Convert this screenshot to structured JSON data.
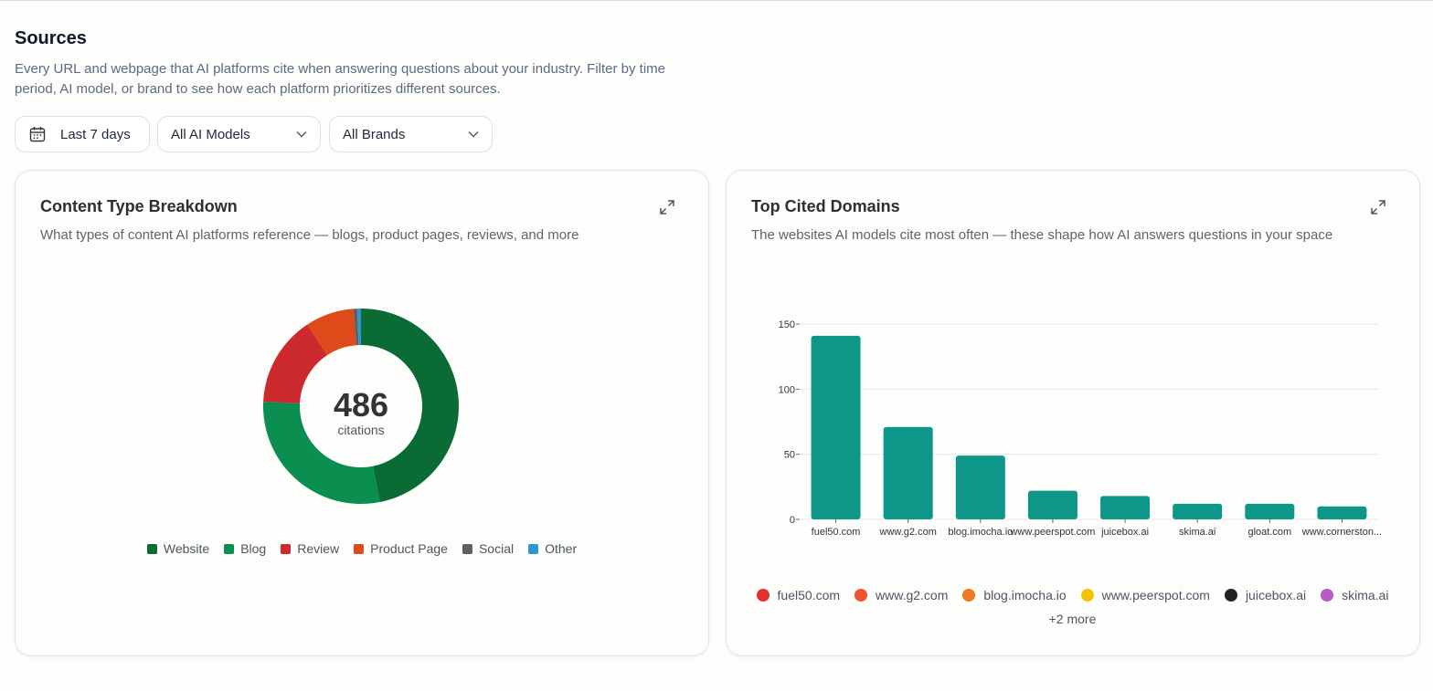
{
  "header": {
    "title": "Sources",
    "description": "Every URL and webpage that AI platforms cite when answering questions about your industry. Filter by time period, AI model, or brand to see how each platform prioritizes different sources."
  },
  "filters": {
    "date": "Last 7 days",
    "model": "All AI Models",
    "brand": "All Brands"
  },
  "chart_data": [
    {
      "type": "donut",
      "title": "Content Type Breakdown",
      "subtitle": "What types of content AI platforms reference — blogs, product pages, reviews, and more",
      "categories": [
        "Website",
        "Blog",
        "Review",
        "Product Page",
        "Social",
        "Other"
      ],
      "values": [
        228,
        140,
        73,
        39,
        3,
        3
      ],
      "colors": [
        "#0b6b35",
        "#0a8f50",
        "#cc2a2e",
        "#df4a1a",
        "#5f5f5f",
        "#2e97cf"
      ],
      "total": 486,
      "total_label": "citations"
    },
    {
      "type": "bar",
      "title": "Top Cited Domains",
      "subtitle": "The websites AI models cite most often — these shape how AI answers questions in your space",
      "categories": [
        "fuel50.com",
        "www.g2.com",
        "blog.imocha.io",
        "www.peerspot.com",
        "juicebox.ai",
        "skima.ai",
        "gloat.com",
        "www.cornerston..."
      ],
      "values": [
        141,
        71,
        49,
        22,
        18,
        12,
        12,
        10
      ],
      "color": "#0e9688",
      "ylim": [
        0,
        150
      ],
      "yticks": [
        0,
        50,
        100,
        150
      ],
      "grid": true,
      "legend": [
        {
          "name": "fuel50.com",
          "color": "#e0312f"
        },
        {
          "name": "www.g2.com",
          "color": "#f0522e"
        },
        {
          "name": "blog.imocha.io",
          "color": "#f07a22"
        },
        {
          "name": "www.peerspot.com",
          "color": "#f2c400"
        },
        {
          "name": "juicebox.ai",
          "color": "#222222"
        },
        {
          "name": "skima.ai",
          "color": "#b45cc9"
        }
      ],
      "legend_more": "+2 more"
    }
  ]
}
